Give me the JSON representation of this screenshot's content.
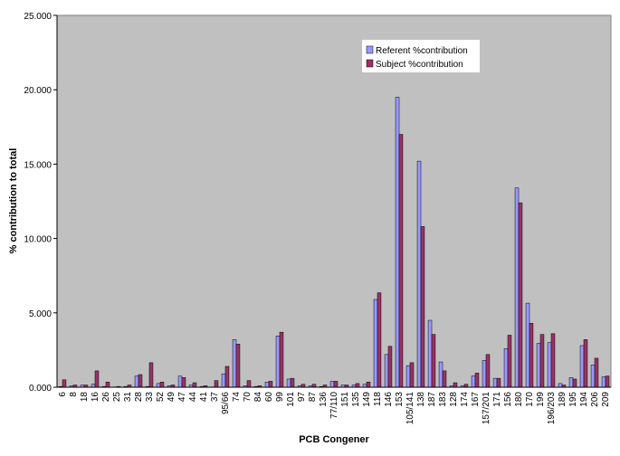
{
  "chart_data": {
    "type": "bar",
    "x_label": "PCB Congener",
    "y_label": "% contribution to total",
    "categories": [
      "6",
      "8",
      "18",
      "16",
      "26",
      "25",
      "31",
      "28",
      "33",
      "52",
      "49",
      "47",
      "44",
      "41",
      "37",
      "95/66",
      "74",
      "70",
      "84",
      "60",
      "99",
      "101",
      "97",
      "87",
      "136",
      "77/110",
      "151",
      "135",
      "149",
      "118",
      "146",
      "153",
      "105/141",
      "138",
      "187",
      "183",
      "128",
      "174",
      "167",
      "157/201",
      "171",
      "156",
      "180",
      "170",
      "199",
      "196/203",
      "189",
      "195",
      "194",
      "206",
      "209"
    ],
    "series": [
      {
        "name": "Referent %contribution",
        "color": "#9999ff",
        "values": [
          0.05,
          0.1,
          0.15,
          0.2,
          0.05,
          0.02,
          0.05,
          0.75,
          0.05,
          0.25,
          0.1,
          0.75,
          0.15,
          0.05,
          0.02,
          0.9,
          3.2,
          0.1,
          0.05,
          0.35,
          3.45,
          0.55,
          0.1,
          0.1,
          0.05,
          0.4,
          0.15,
          0.15,
          0.2,
          5.9,
          2.2,
          19.5,
          1.45,
          15.2,
          4.5,
          1.7,
          0.1,
          0.1,
          0.75,
          1.8,
          0.6,
          2.6,
          13.4,
          5.65,
          2.95,
          3.0,
          0.25,
          0.65,
          2.8,
          1.5,
          0.7
        ]
      },
      {
        "name": "Subject %contribution",
        "color": "#993366",
        "values": [
          0.5,
          0.15,
          0.15,
          1.1,
          0.35,
          0.05,
          0.15,
          0.85,
          1.65,
          0.35,
          0.15,
          0.65,
          0.3,
          0.1,
          0.45,
          1.4,
          2.9,
          0.45,
          0.1,
          0.4,
          3.7,
          0.6,
          0.2,
          0.2,
          0.15,
          0.4,
          0.15,
          0.25,
          0.35,
          6.35,
          2.75,
          17.0,
          1.65,
          10.8,
          3.55,
          1.1,
          0.3,
          0.2,
          0.95,
          2.2,
          0.6,
          3.5,
          12.4,
          4.3,
          3.55,
          3.6,
          0.15,
          0.55,
          3.2,
          1.95,
          0.75
        ]
      }
    ],
    "ylim": [
      0,
      25
    ],
    "yticks": [
      {
        "value": 0,
        "label": "0.000"
      },
      {
        "value": 5,
        "label": "5.000"
      },
      {
        "value": 10,
        "label": "10.000"
      },
      {
        "value": 15,
        "label": "15.000"
      },
      {
        "value": 20,
        "label": "20.000"
      },
      {
        "value": 25,
        "label": "25.000"
      }
    ],
    "plot_background": "#c0c0c0"
  }
}
